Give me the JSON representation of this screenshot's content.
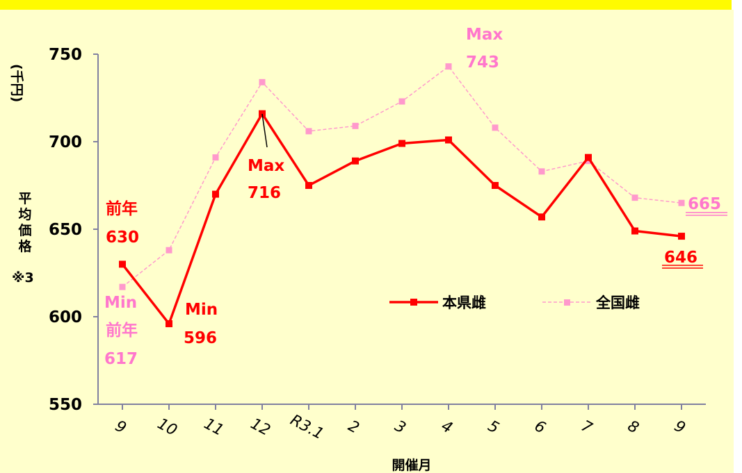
{
  "chart_data": {
    "type": "line",
    "categories": [
      "9",
      "10",
      "11",
      "12",
      "R3.1",
      "2",
      "3",
      "4",
      "5",
      "6",
      "7",
      "8",
      "9"
    ],
    "ylim": [
      550,
      750
    ],
    "yticks": [
      "550",
      "600",
      "650",
      "700",
      "750"
    ],
    "ylabel_unit": "(千円)",
    "ylabel": "平均価格",
    "ylabel_note": "※3",
    "xlabel": "開催月",
    "grid": false,
    "legend_position": "right",
    "series": [
      {
        "name": "本県雌",
        "color": "#ff0000",
        "values": [
          630,
          596,
          670,
          716,
          675,
          689,
          699,
          701,
          675,
          657,
          691,
          649,
          646
        ]
      },
      {
        "name": "全国雌",
        "color": "#ff99cc",
        "values": [
          617,
          638,
          691,
          734,
          706,
          709,
          723,
          743,
          708,
          683,
          689,
          668,
          665
        ]
      }
    ],
    "annotations": {
      "red_prev_label": "前年",
      "red_prev_value": "630",
      "red_min_label": "Min",
      "red_min_value": "596",
      "red_max_label": "Max",
      "red_max_value": "716",
      "red_last_value": "646",
      "pink_min_label": "Min",
      "pink_prev_label": "前年",
      "pink_prev_value": "617",
      "pink_max_label": "Max",
      "pink_max_value": "743",
      "pink_last_value": "665"
    }
  }
}
